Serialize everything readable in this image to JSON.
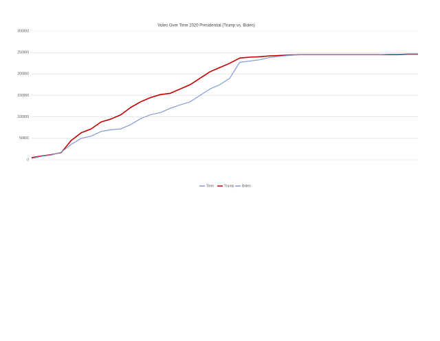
{
  "chart_data": {
    "type": "line",
    "title": "Votes Over Time 2020 Presidential (Trump vs. Biden)",
    "categories": [
      null,
      null,
      null,
      null,
      null,
      null,
      null,
      null,
      null,
      null,
      null,
      null,
      null,
      null,
      null,
      null,
      null,
      null,
      null,
      null,
      null,
      null,
      null,
      null,
      null,
      null,
      null,
      null,
      null,
      null,
      null,
      null,
      null,
      null,
      null,
      null,
      null,
      null,
      null,
      null
    ],
    "series": [
      {
        "name": "Time",
        "color": "#7f9cc8",
        "values": [
          null,
          null,
          null,
          null,
          null,
          null,
          null,
          null,
          null,
          null,
          null,
          null,
          null,
          null,
          null,
          null,
          null,
          null,
          null,
          null,
          null,
          null,
          null,
          null,
          null,
          null,
          null,
          null,
          null,
          null,
          null,
          null,
          null,
          null,
          null,
          null,
          null,
          null,
          null,
          null
        ]
      },
      {
        "name": "Trump",
        "color": "#c00000",
        "values": [
          5000,
          9000,
          12000,
          17000,
          45000,
          63000,
          72000,
          88000,
          95000,
          105000,
          122000,
          135000,
          145000,
          152000,
          155000,
          165000,
          175000,
          190000,
          205000,
          215000,
          225000,
          237000,
          239000,
          240000,
          242000,
          243000,
          244000,
          245000,
          245000,
          245000,
          245000,
          245000,
          245000,
          245000,
          245000,
          245000,
          245000,
          245000,
          246000,
          246000
        ]
      },
      {
        "name": "Biden",
        "color": "#7f9cd6",
        "values": [
          3000,
          8000,
          11000,
          18000,
          36000,
          50000,
          55000,
          66000,
          70000,
          72000,
          82000,
          96000,
          105000,
          110000,
          120000,
          128000,
          135000,
          150000,
          165000,
          175000,
          190000,
          227000,
          230000,
          233000,
          238000,
          241000,
          243000,
          245000,
          245000,
          245000,
          245000,
          245000,
          245000,
          245000,
          245000,
          245000,
          246000,
          246000,
          247000,
          247000
        ]
      }
    ],
    "ylim": [
      0,
      300000
    ],
    "yticks": [
      0,
      50000,
      100000,
      150000,
      200000,
      250000,
      300000
    ],
    "grid": true,
    "legend": "bottom"
  }
}
